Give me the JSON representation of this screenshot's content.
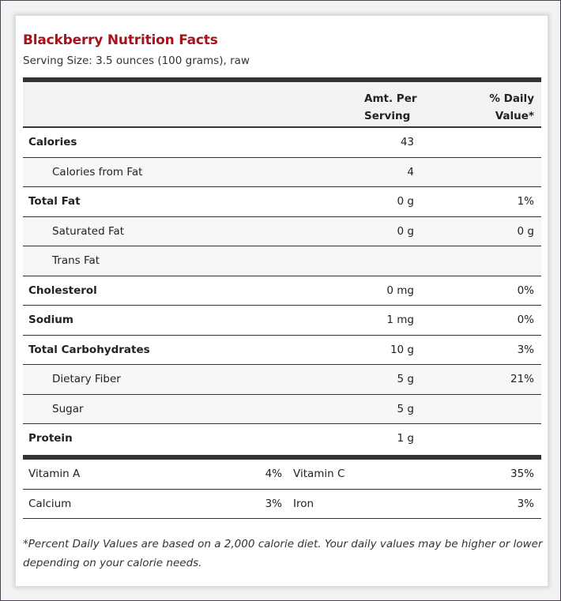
{
  "title": "Blackberry Nutrition Facts",
  "serving": "Serving Size: 3.5 ounces (100 grams), raw",
  "header": {
    "amount": "Amt. Per Serving",
    "amount_l1": "Amt. Per",
    "amount_l2": "Serving",
    "dv_l1": "% Daily",
    "dv_l2": "Value*"
  },
  "rows": [
    {
      "name": "Calories",
      "amount": "43",
      "dv": ""
    },
    {
      "name": "Calories from Fat",
      "amount": "4",
      "dv": ""
    },
    {
      "name": "Total Fat",
      "amount": "0 g",
      "dv": "1%"
    },
    {
      "name": "Saturated Fat",
      "amount": "0 g",
      "dv": "0 g"
    },
    {
      "name": "Trans Fat",
      "amount": "",
      "dv": ""
    },
    {
      "name": "Cholesterol",
      "amount": "0 mg",
      "dv": "0%"
    },
    {
      "name": "Sodium",
      "amount": "1 mg",
      "dv": "0%"
    },
    {
      "name": "Total Carbohydrates",
      "amount": "10 g",
      "dv": "3%"
    },
    {
      "name": "Dietary Fiber",
      "amount": "5 g",
      "dv": "21%"
    },
    {
      "name": "Sugar",
      "amount": "5 g",
      "dv": ""
    },
    {
      "name": "Protein",
      "amount": "1 g",
      "dv": ""
    }
  ],
  "vitamins": [
    {
      "left_name": "Vitamin A",
      "left_pct": "4%",
      "right_name": "Vitamin C",
      "right_pct": "35%"
    },
    {
      "left_name": "Calcium",
      "left_pct": "3%",
      "right_name": "Iron",
      "right_pct": "3%"
    }
  ],
  "footnote": "*Percent Daily Values are based on a 2,000 calorie diet. Your daily values may be higher or lower depending on your calorie needs.",
  "colors": {
    "title": "#a6141b",
    "rule": "#333333",
    "header_bg": "#f2f2f2",
    "sub_bg": "#f7f7f7"
  }
}
